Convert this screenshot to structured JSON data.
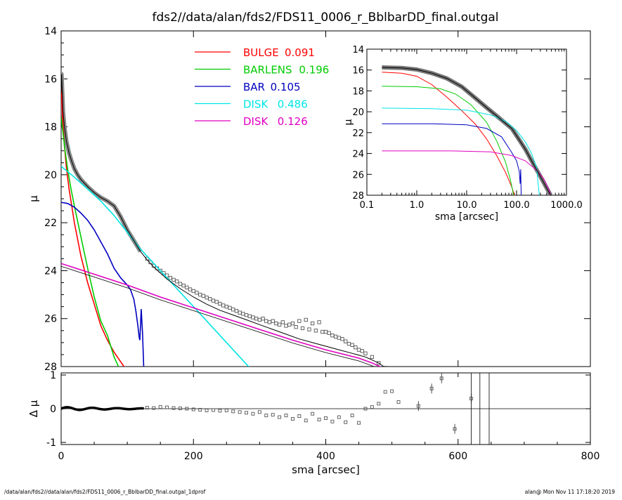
{
  "title": "fds2//data/alan/fds2/FDS11_0006_r_BblbarDD_final.outgal",
  "footer": {
    "left": "/data/alan/fds2//data/alan/fds2/FDS11_0006_r_BblbarDD_final.outgal_1dprof",
    "right": "alan@  Mon Nov 11 17:18:20 2019"
  },
  "colors": {
    "bulge": "#ff0000",
    "barlens": "#00cc00",
    "bar": "#0000c0",
    "disk1": "#00e5e5",
    "disk2": "#e000c0",
    "total": "#000000",
    "data": "#888888"
  },
  "chart_data": [
    {
      "type": "line",
      "panel": "main",
      "xlabel": "",
      "ylabel": "μ",
      "xlim": [
        0,
        800
      ],
      "ylim": [
        28,
        14
      ],
      "yticks": [
        "14",
        "16",
        "18",
        "20",
        "22",
        "24",
        "26",
        "28"
      ],
      "legend": [
        {
          "name": "BULGE",
          "value": "0.091",
          "color": "#ff0000"
        },
        {
          "name": "BARLENS",
          "value": "0.196",
          "color": "#00cc00"
        },
        {
          "name": "BAR",
          "value": "0.105",
          "color": "#0000c0"
        },
        {
          "name": "DISK",
          "value": "0.486",
          "color": "#00e5e5"
        },
        {
          "name": "DISK",
          "value": "0.126",
          "color": "#e000c0"
        }
      ],
      "series": [
        {
          "key": "bulge",
          "x": [
            0,
            2,
            5,
            8,
            12,
            16,
            20,
            25,
            30,
            40,
            50,
            60,
            70,
            80,
            90,
            100
          ],
          "y": [
            16.2,
            17.6,
            18.8,
            19.7,
            20.6,
            21.3,
            22.0,
            22.7,
            23.4,
            24.5,
            25.4,
            26.3,
            26.9,
            27.4,
            27.8,
            28.2
          ]
        },
        {
          "key": "barlens",
          "x": [
            0,
            3,
            6,
            10,
            15,
            20,
            30,
            40,
            50,
            60,
            70,
            80,
            90
          ],
          "y": [
            17.6,
            18.3,
            19.0,
            19.8,
            20.6,
            21.3,
            22.6,
            23.9,
            25.1,
            26.1,
            26.7,
            27.6,
            28.2
          ]
        },
        {
          "key": "bar",
          "x": [
            0,
            10,
            20,
            30,
            40,
            50,
            60,
            70,
            80,
            90,
            100,
            105,
            110,
            113,
            116,
            118,
            119,
            120,
            121,
            123,
            125
          ],
          "y": [
            21.15,
            21.2,
            21.35,
            21.6,
            21.9,
            22.3,
            22.8,
            23.3,
            23.9,
            24.3,
            24.6,
            24.8,
            25.2,
            25.7,
            26.3,
            26.8,
            26.9,
            26.3,
            25.6,
            26.6,
            28.2
          ]
        },
        {
          "key": "disk1",
          "x": [
            0,
            20,
            40,
            60,
            80,
            100,
            120,
            140,
            160,
            180,
            200,
            220,
            240,
            260,
            280,
            290
          ],
          "y": [
            19.65,
            20.1,
            20.6,
            21.1,
            21.7,
            22.4,
            23.1,
            23.7,
            24.3,
            24.9,
            25.5,
            26.1,
            26.7,
            27.3,
            27.9,
            28.2
          ]
        },
        {
          "key": "disk2",
          "x": [
            0,
            50,
            100,
            150,
            200,
            250,
            300,
            350,
            400,
            450,
            470,
            490
          ],
          "y": [
            23.7,
            24.15,
            24.6,
            25.1,
            25.55,
            26.0,
            26.45,
            26.9,
            27.3,
            27.65,
            27.85,
            28.1
          ]
        },
        {
          "key": "total",
          "x": [
            0,
            0.6,
            1.5,
            3,
            5,
            8,
            12,
            16,
            20,
            25,
            30,
            40,
            50,
            60,
            70,
            80,
            90,
            100,
            110,
            120,
            130,
            140,
            160,
            180,
            200,
            220,
            240,
            260,
            280,
            300,
            320,
            340,
            360,
            380,
            400,
            420,
            440,
            460,
            480,
            490
          ],
          "y": [
            16.6,
            15.8,
            16.4,
            17.4,
            18.0,
            18.6,
            19.1,
            19.45,
            19.75,
            20.0,
            20.2,
            20.5,
            20.75,
            20.95,
            21.1,
            21.3,
            21.75,
            22.3,
            22.75,
            23.2,
            23.55,
            23.85,
            24.35,
            24.75,
            25.1,
            25.4,
            25.65,
            25.85,
            26.05,
            26.25,
            26.45,
            26.65,
            26.85,
            27.0,
            27.15,
            27.3,
            27.45,
            27.6,
            27.85,
            28.05
          ]
        },
        {
          "key": "data",
          "x": [
            130,
            135,
            140,
            145,
            150,
            155,
            160,
            165,
            170,
            175,
            180,
            185,
            190,
            195,
            200,
            205,
            210,
            215,
            220,
            225,
            230,
            235,
            240,
            245,
            250,
            255,
            260,
            265,
            270,
            275,
            280,
            285,
            290,
            295,
            300,
            305,
            310,
            315,
            320,
            325,
            330,
            335,
            340,
            345,
            350,
            355,
            360,
            365,
            370,
            375,
            380,
            385,
            390,
            395,
            400,
            405,
            410,
            415,
            420,
            425,
            430,
            435,
            440,
            445,
            450,
            455,
            460,
            470,
            480,
            490
          ],
          "y": [
            23.5,
            23.65,
            23.8,
            23.9,
            24.0,
            24.1,
            24.2,
            24.3,
            24.38,
            24.45,
            24.55,
            24.62,
            24.7,
            24.78,
            24.85,
            24.92,
            25.0,
            25.05,
            25.12,
            25.18,
            25.25,
            25.3,
            25.38,
            25.45,
            25.5,
            25.55,
            25.62,
            25.68,
            25.75,
            25.8,
            25.85,
            25.9,
            25.95,
            26.0,
            26.05,
            26.0,
            26.1,
            26.15,
            26.1,
            26.2,
            26.25,
            26.15,
            26.3,
            26.25,
            26.2,
            26.35,
            26.1,
            26.4,
            26.05,
            26.45,
            26.2,
            26.5,
            26.15,
            26.55,
            26.55,
            26.6,
            26.7,
            26.75,
            26.8,
            26.85,
            26.95,
            27.05,
            27.1,
            27.2,
            27.3,
            27.35,
            27.45,
            27.6,
            27.85,
            28.05
          ]
        }
      ]
    },
    {
      "type": "line",
      "panel": "residual",
      "xlabel": "sma [arcsec]",
      "ylabel": "Δ μ",
      "xlim": [
        0,
        800
      ],
      "ylim": [
        -1,
        1
      ],
      "xticks": [
        "0",
        "200",
        "400",
        "600",
        "800"
      ],
      "yticks": [
        "1",
        "0",
        "-1"
      ],
      "points": {
        "x": [
          130,
          140,
          150,
          160,
          170,
          180,
          190,
          200,
          210,
          220,
          230,
          240,
          250,
          260,
          270,
          280,
          290,
          300,
          310,
          320,
          330,
          340,
          350,
          360,
          370,
          380,
          390,
          400,
          410,
          420,
          430,
          440,
          450,
          460,
          470,
          480,
          490,
          500,
          510,
          540,
          560,
          575,
          595,
          620
        ],
        "y": [
          0.03,
          0.02,
          0.05,
          0.04,
          0.02,
          0.01,
          0.0,
          -0.02,
          -0.03,
          -0.05,
          -0.04,
          -0.06,
          -0.05,
          -0.08,
          -0.1,
          -0.12,
          -0.15,
          -0.1,
          -0.2,
          -0.18,
          -0.25,
          -0.2,
          -0.3,
          -0.22,
          -0.35,
          -0.15,
          -0.32,
          -0.28,
          -0.38,
          -0.25,
          -0.4,
          -0.2,
          -0.42,
          0.0,
          0.05,
          0.15,
          0.5,
          0.52,
          0.2,
          0.08,
          0.6,
          0.9,
          -0.6,
          0.3
        ]
      }
    },
    {
      "type": "line",
      "panel": "inset",
      "xscale": "log",
      "xlabel": "sma [arcsec]",
      "ylabel": "μ",
      "xlim": [
        0.1,
        1000
      ],
      "ylim": [
        28,
        14
      ],
      "xticks": [
        "0.1",
        "1.0",
        "10.0",
        "100.0",
        "1000.0"
      ],
      "yticks": [
        "14",
        "16",
        "18",
        "20",
        "22",
        "24",
        "26",
        "28"
      ]
    }
  ]
}
